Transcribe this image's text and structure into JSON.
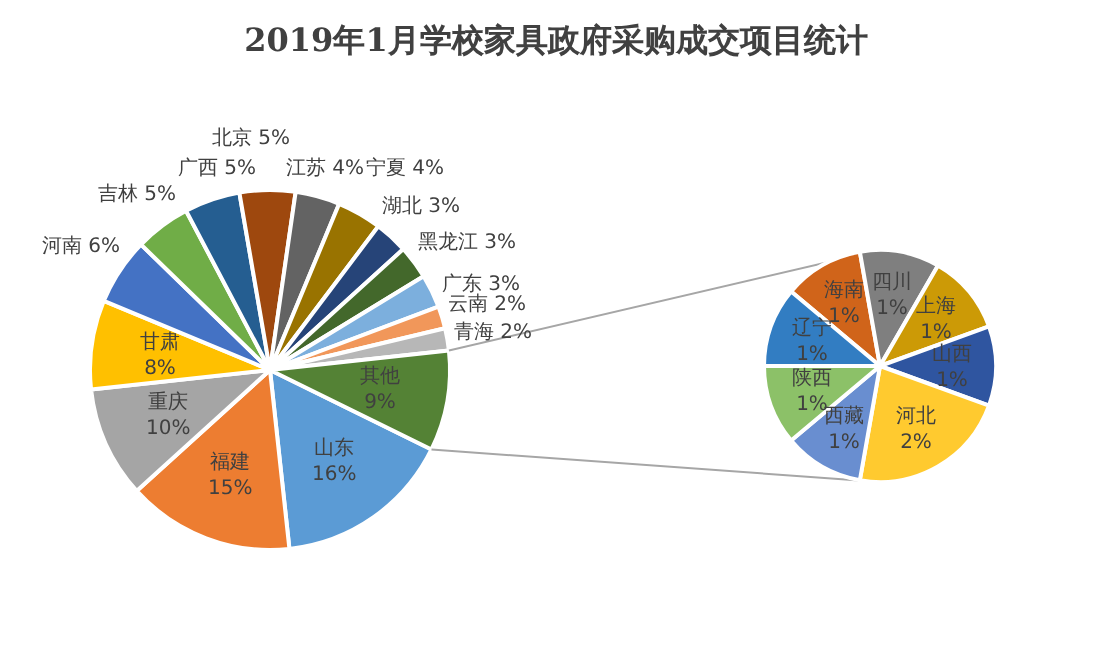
{
  "chart_data": [
    {
      "type": "pie",
      "title": "2019年1月学校家具政府采购成交项目统计",
      "categories": [
        "山东",
        "福建",
        "重庆",
        "甘肃",
        "河南",
        "吉林",
        "广西",
        "北京",
        "江苏",
        "宁夏",
        "湖北",
        "黑龙江",
        "广东",
        "云南",
        "青海",
        "其他"
      ],
      "values": [
        16,
        15,
        10,
        8,
        6,
        5,
        5,
        5,
        4,
        4,
        3,
        3,
        3,
        2,
        2,
        9
      ],
      "value_labels": [
        "16%",
        "15%",
        "10%",
        "8%",
        "6%",
        "5%",
        "5%",
        "5%",
        "4%",
        "4%",
        "3%",
        "3%",
        "3%",
        "2%",
        "2%",
        "9%"
      ],
      "colors": [
        "#5b9bd5",
        "#ed7d31",
        "#a5a5a5",
        "#ffc000",
        "#4472c4",
        "#70ad47",
        "#255e91",
        "#9e480e",
        "#636363",
        "#997300",
        "#264478",
        "#43682b",
        "#7cafdd",
        "#f1975a",
        "#b7b7b7",
        "#548235"
      ]
    },
    {
      "type": "pie",
      "categories": [
        "海南",
        "四川",
        "上海",
        "山西",
        "河北",
        "西藏",
        "陕西",
        "辽宁"
      ],
      "values": [
        1,
        1,
        1,
        1,
        2,
        1,
        1,
        1
      ],
      "value_labels": [
        "1%",
        "1%",
        "1%",
        "1%",
        "2%",
        "1%",
        "1%",
        "1%"
      ],
      "colors": [
        "#d0641a",
        "#7f7f7f",
        "#cc9a06",
        "#2f55a0",
        "#ffca2f",
        "#698ed0",
        "#8cc168",
        "#327dc2"
      ]
    }
  ]
}
